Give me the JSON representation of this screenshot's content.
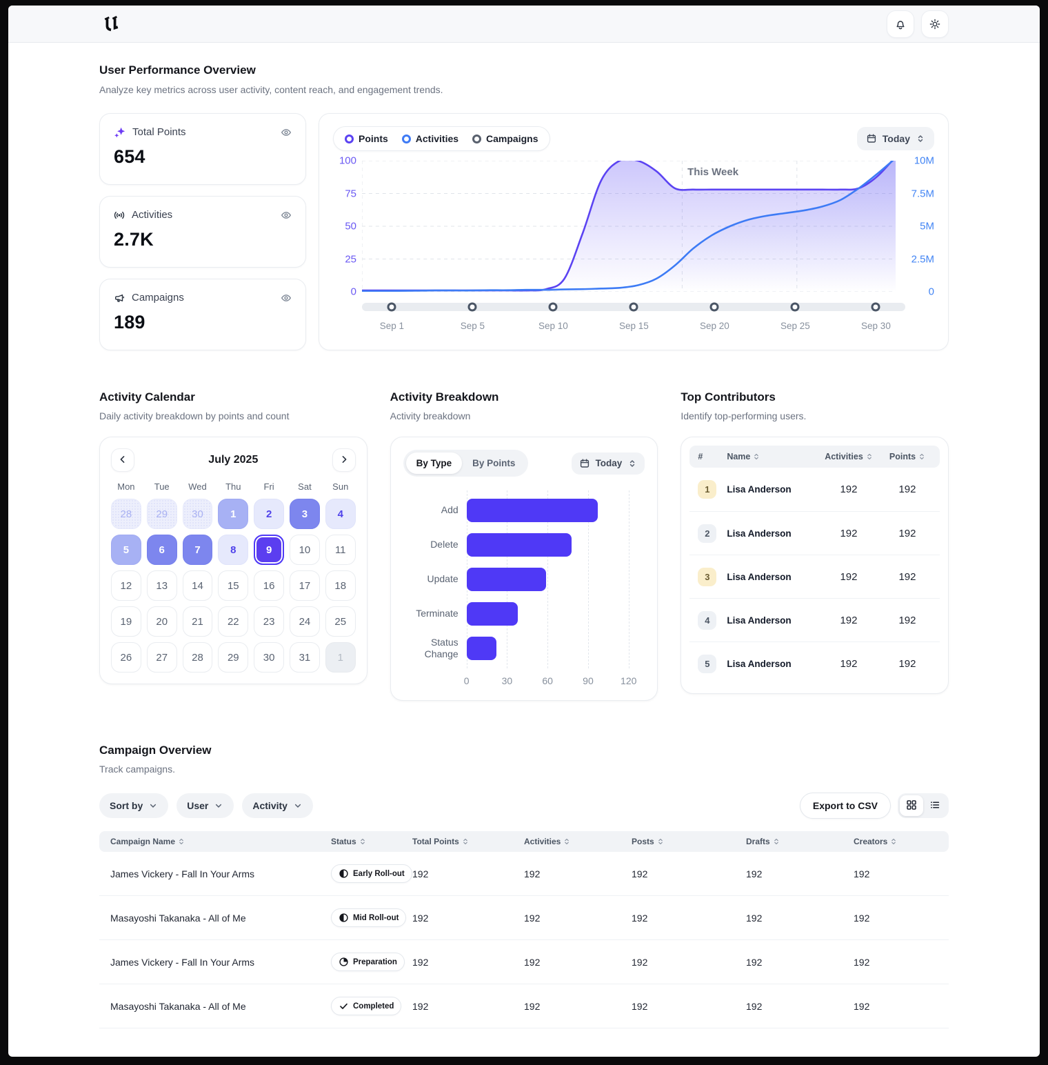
{
  "header": {
    "logo": "blackletter-u-logo",
    "actions": [
      {
        "name": "notifications-button",
        "icon": "bell-icon"
      },
      {
        "name": "theme-toggle-button",
        "icon": "sun-icon"
      }
    ]
  },
  "page": {
    "title": "User Performance Overview",
    "subtitle": "Analyze key metrics across user activity, content reach, and engagement trends."
  },
  "stats": [
    {
      "icon": "sparkles-icon",
      "icon_color": "#6d3bf5",
      "label": "Total Points",
      "value": "654"
    },
    {
      "icon": "broadcast-icon",
      "icon_color": "#2b3340",
      "label": "Activities",
      "value": "2.7K"
    },
    {
      "icon": "megaphone-icon",
      "icon_color": "#2b3340",
      "label": "Campaigns",
      "value": "189"
    }
  ],
  "trend_chart": {
    "legend": [
      {
        "label": "Points",
        "color": "#5b43f2"
      },
      {
        "label": "Activities",
        "color": "#3f7bf5"
      },
      {
        "label": "Campaigns",
        "color": "#59616e"
      }
    ],
    "range_label": "Today",
    "annotation": "This Week",
    "chart_data": {
      "type": "area",
      "x": "Sep 1 to Sep 30 (days 1-30)",
      "x_ticks": [
        "Sep 1",
        "Sep 5",
        "Sep 10",
        "Sep 15",
        "Sep 20",
        "Sep 25",
        "Sep 30"
      ],
      "left_axis": {
        "ticks": [
          "100",
          "75",
          "50",
          "25",
          "0"
        ],
        "min": 0,
        "max": 100,
        "color": "#6a58f3"
      },
      "right_axis": {
        "ticks": [
          "10M",
          "7.5M",
          "5M",
          "2.5M",
          "0"
        ],
        "min": 0,
        "max": 10000000,
        "color": "#4385f4"
      },
      "grid": true,
      "this_week_band_fractions": [
        0.6,
        0.815
      ],
      "series": [
        {
          "name": "Points",
          "axis": "left",
          "color": "#5b43f2",
          "values": [
            1,
            1,
            1,
            1,
            1,
            1,
            1,
            1,
            1,
            1,
            2,
            10,
            45,
            85,
            100,
            100,
            92,
            79,
            78,
            78,
            78,
            78,
            78,
            78,
            78,
            78,
            78,
            79,
            88,
            103
          ]
        },
        {
          "name": "Activities",
          "axis": "right",
          "color": "#3d7bf5",
          "unit": "millions",
          "values": [
            0.05,
            0.05,
            0.07,
            0.08,
            0.1,
            0.1,
            0.1,
            0.12,
            0.12,
            0.15,
            0.15,
            0.18,
            0.2,
            0.25,
            0.3,
            0.5,
            1,
            2,
            3.3,
            4.3,
            5,
            5.5,
            5.8,
            6,
            6.2,
            6.5,
            7,
            7.9,
            9,
            10.2
          ]
        }
      ]
    }
  },
  "calendar": {
    "title": "Activity Calendar",
    "subtitle": "Daily activity breakdown by points and count",
    "month_title": "July 2025",
    "day_names": [
      "Mon",
      "Tue",
      "Wed",
      "Thu",
      "Fri",
      "Sat",
      "Sun"
    ],
    "cells": [
      {
        "d": "28",
        "v": "prev"
      },
      {
        "d": "29",
        "v": "prev"
      },
      {
        "d": "30",
        "v": "prev"
      },
      {
        "d": "1",
        "v": "l3"
      },
      {
        "d": "2",
        "v": "l1"
      },
      {
        "d": "3",
        "v": "l4"
      },
      {
        "d": "4",
        "v": "l1"
      },
      {
        "d": "5",
        "v": "l3"
      },
      {
        "d": "6",
        "v": "l4"
      },
      {
        "d": "7",
        "v": "l4"
      },
      {
        "d": "8",
        "v": "l1"
      },
      {
        "d": "9",
        "v": "sel"
      },
      {
        "d": "10",
        "v": ""
      },
      {
        "d": "11",
        "v": ""
      },
      {
        "d": "12",
        "v": ""
      },
      {
        "d": "13",
        "v": ""
      },
      {
        "d": "14",
        "v": ""
      },
      {
        "d": "15",
        "v": ""
      },
      {
        "d": "16",
        "v": ""
      },
      {
        "d": "17",
        "v": ""
      },
      {
        "d": "18",
        "v": ""
      },
      {
        "d": "19",
        "v": ""
      },
      {
        "d": "20",
        "v": ""
      },
      {
        "d": "21",
        "v": ""
      },
      {
        "d": "22",
        "v": ""
      },
      {
        "d": "23",
        "v": ""
      },
      {
        "d": "24",
        "v": ""
      },
      {
        "d": "25",
        "v": ""
      },
      {
        "d": "26",
        "v": ""
      },
      {
        "d": "27",
        "v": ""
      },
      {
        "d": "28",
        "v": ""
      },
      {
        "d": "29",
        "v": ""
      },
      {
        "d": "30",
        "v": ""
      },
      {
        "d": "31",
        "v": ""
      },
      {
        "d": "1",
        "v": "next"
      }
    ]
  },
  "breakdown": {
    "title": "Activity Breakdown",
    "subtitle": "Activity breakdown",
    "tabs": [
      "By Type",
      "By Points"
    ],
    "active_tab": "By Type",
    "range_label": "Today",
    "chart_data": {
      "type": "bar",
      "orientation": "horizontal",
      "categories": [
        "Add",
        "Delete",
        "Update",
        "Terminate",
        "Status Change"
      ],
      "values": [
        97,
        78,
        59,
        38,
        22
      ],
      "x_ticks": [
        0,
        30,
        60,
        90,
        120
      ],
      "x_display_max": 130,
      "bar_color": "#4f39f6"
    }
  },
  "contributors": {
    "title": "Top Contributors",
    "subtitle": "Identify top-performing users.",
    "columns": [
      "#",
      "Name",
      "Activities",
      "Points"
    ],
    "rows": [
      {
        "rank": "1",
        "badge": "gold",
        "name": "Lisa Anderson",
        "activities": "192",
        "points": "192"
      },
      {
        "rank": "2",
        "badge": "gray",
        "name": "Lisa Anderson",
        "activities": "192",
        "points": "192"
      },
      {
        "rank": "3",
        "badge": "gold",
        "name": "Lisa Anderson",
        "activities": "192",
        "points": "192"
      },
      {
        "rank": "4",
        "badge": "gray",
        "name": "Lisa Anderson",
        "activities": "192",
        "points": "192"
      },
      {
        "rank": "5",
        "badge": "gray",
        "name": "Lisa Anderson",
        "activities": "192",
        "points": "192"
      }
    ]
  },
  "campaigns": {
    "title": "Campaign Overview",
    "subtitle": "Track campaigns.",
    "filters": [
      "Sort by",
      "User",
      "Activity"
    ],
    "export_label": "Export to CSV",
    "view_modes": [
      "grid",
      "list"
    ],
    "active_view": "grid",
    "columns": [
      "Campaign Name",
      "Status",
      "Total Points",
      "Activities",
      "Posts",
      "Drafts",
      "Creators"
    ],
    "rows": [
      {
        "name": "James Vickery - Fall In Your Arms",
        "status": "Early Roll-out",
        "status_icon": "half-circle-icon",
        "total_points": "192",
        "activities": "192",
        "posts": "192",
        "drafts": "192",
        "creators": "192"
      },
      {
        "name": "Masayoshi Takanaka - All of Me",
        "status": "Mid Roll-out",
        "status_icon": "half-circle-icon",
        "total_points": "192",
        "activities": "192",
        "posts": "192",
        "drafts": "192",
        "creators": "192"
      },
      {
        "name": "James Vickery - Fall In Your Arms",
        "status": "Preparation",
        "status_icon": "pie-icon",
        "total_points": "192",
        "activities": "192",
        "posts": "192",
        "drafts": "192",
        "creators": "192"
      },
      {
        "name": "Masayoshi Takanaka - All of Me",
        "status": "Completed",
        "status_icon": "check-icon",
        "total_points": "192",
        "activities": "192",
        "posts": "192",
        "drafts": "192",
        "creators": "192"
      }
    ]
  }
}
